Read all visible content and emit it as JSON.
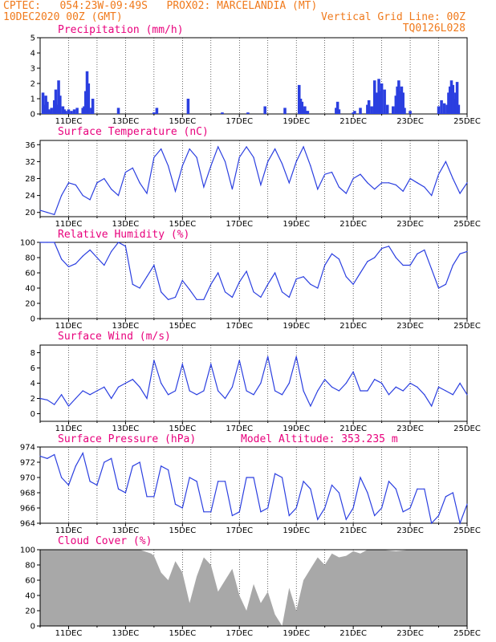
{
  "header": {
    "line1_left": "CPTEC:   054:23W-09:49S   PROX02: MARCELANDIA (MT)",
    "line2_left": "10DEC2020 00Z (GMT)",
    "line2_right": "Vertical Grid Line: 00Z",
    "line3_right": "TQ0126L028"
  },
  "x_tick_labels": [
    "11DEC",
    "13DEC",
    "15DEC",
    "17DEC",
    "19DEC",
    "21DEC",
    "23DEC",
    "25DEC"
  ],
  "colors": {
    "line": "#2b3fe0",
    "bar": "#2b3fe0",
    "cloud": "#a8a8a8",
    "title": "#e8007c",
    "header": "#f07a1c"
  },
  "chart_data": [
    {
      "type": "bar",
      "title": "Precipitation (mm/h)",
      "ylim": [
        0,
        5
      ],
      "yticks": [
        0,
        1,
        2,
        3,
        4,
        5
      ],
      "x_range_days": [
        10,
        25
      ],
      "x": [
        10.1,
        10.15,
        10.2,
        10.25,
        10.3,
        10.35,
        10.4,
        10.5,
        10.55,
        10.6,
        10.65,
        10.7,
        10.8,
        10.85,
        10.9,
        11.0,
        11.1,
        11.2,
        11.3,
        11.5,
        11.55,
        11.6,
        11.65,
        11.7,
        11.8,
        11.85,
        12.75,
        14.0,
        14.1,
        15.2,
        16.4,
        17.3,
        17.9,
        18.6,
        19.1,
        19.15,
        19.2,
        19.25,
        19.3,
        19.35,
        19.4,
        20.4,
        20.45,
        20.5,
        21.0,
        21.05,
        21.25,
        21.5,
        21.55,
        21.65,
        21.75,
        21.8,
        21.85,
        21.9,
        21.95,
        22.0,
        22.1,
        22.2,
        22.4,
        22.5,
        22.55,
        22.6,
        22.65,
        22.7,
        22.75,
        22.8,
        23.0,
        24.0,
        24.1,
        24.2,
        24.3,
        24.35,
        24.4,
        24.45,
        24.5,
        24.55,
        24.6,
        24.65,
        24.7
      ],
      "values": [
        1.4,
        0.6,
        1.2,
        0.8,
        0.3,
        0.2,
        0.4,
        0.9,
        1.6,
        0.6,
        2.2,
        1.2,
        0.5,
        0.3,
        0.2,
        0.3,
        0.2,
        0.3,
        0.4,
        0.4,
        0.5,
        1.5,
        2.8,
        2.0,
        0.4,
        1.0,
        0.4,
        0.1,
        0.4,
        1.0,
        0.1,
        0.1,
        0.5,
        0.4,
        1.9,
        1.0,
        0.8,
        0.3,
        0.5,
        0.2,
        0.2,
        0.4,
        0.8,
        0.3,
        0.1,
        0.2,
        0.4,
        0.6,
        0.9,
        0.5,
        2.2,
        1.2,
        1.4,
        2.3,
        1.5,
        2.0,
        1.6,
        0.6,
        0.5,
        1.2,
        1.8,
        2.2,
        1.5,
        1.8,
        1.4,
        0.4,
        0.2,
        0.5,
        0.9,
        0.7,
        0.6,
        1.4,
        1.8,
        2.2,
        1.9,
        1.0,
        1.4,
        2.1,
        0.6
      ]
    },
    {
      "type": "line",
      "title": "Surface Temperature (nC)",
      "ylim": [
        19,
        37
      ],
      "yticks": [
        20,
        24,
        28,
        32,
        36
      ],
      "x": [
        10.0,
        10.25,
        10.5,
        10.75,
        11.0,
        11.25,
        11.5,
        11.75,
        12.0,
        12.25,
        12.5,
        12.75,
        13.0,
        13.25,
        13.5,
        13.75,
        14.0,
        14.25,
        14.5,
        14.75,
        15.0,
        15.25,
        15.5,
        15.75,
        16.0,
        16.25,
        16.5,
        16.75,
        17.0,
        17.25,
        17.5,
        17.75,
        18.0,
        18.25,
        18.5,
        18.75,
        19.0,
        19.25,
        19.5,
        19.75,
        20.0,
        20.25,
        20.5,
        20.75,
        21.0,
        21.25,
        21.5,
        21.75,
        22.0,
        22.25,
        22.5,
        22.75,
        23.0,
        23.25,
        23.5,
        23.75,
        24.0,
        24.25,
        24.5,
        24.75,
        25.0
      ],
      "values": [
        20.5,
        20.0,
        19.5,
        24.0,
        27.0,
        26.5,
        24.0,
        23.0,
        27.0,
        28.0,
        25.5,
        24.0,
        29.5,
        30.5,
        27.0,
        24.5,
        33.0,
        35.0,
        31.0,
        25.0,
        31.0,
        35.0,
        33.0,
        26.0,
        31.0,
        35.5,
        32.0,
        25.5,
        33.0,
        35.5,
        33.0,
        26.5,
        32.0,
        35.0,
        31.5,
        27.0,
        32.0,
        35.5,
        31.0,
        25.5,
        29.0,
        29.5,
        26.0,
        24.5,
        28.0,
        29.0,
        27.0,
        25.5,
        27.0,
        27.0,
        26.5,
        25.0,
        28.0,
        27.0,
        26.0,
        24.0,
        29.0,
        32.0,
        28.0,
        24.5,
        27.0
      ]
    },
    {
      "type": "line",
      "title": "Relative Humidity (%)",
      "ylim": [
        0,
        100
      ],
      "yticks": [
        0,
        20,
        40,
        60,
        80,
        100
      ],
      "x": [
        10.0,
        10.25,
        10.5,
        10.75,
        11.0,
        11.25,
        11.5,
        11.75,
        12.0,
        12.25,
        12.5,
        12.75,
        13.0,
        13.25,
        13.5,
        13.75,
        14.0,
        14.25,
        14.5,
        14.75,
        15.0,
        15.25,
        15.5,
        15.75,
        16.0,
        16.25,
        16.5,
        16.75,
        17.0,
        17.25,
        17.5,
        17.75,
        18.0,
        18.25,
        18.5,
        18.75,
        19.0,
        19.25,
        19.5,
        19.75,
        20.0,
        20.25,
        20.5,
        20.75,
        21.0,
        21.25,
        21.5,
        21.75,
        22.0,
        22.25,
        22.5,
        22.75,
        23.0,
        23.25,
        23.5,
        23.75,
        24.0,
        24.25,
        24.5,
        24.75,
        25.0
      ],
      "values": [
        100,
        100,
        100,
        78,
        68,
        72,
        82,
        90,
        80,
        70,
        88,
        100,
        95,
        45,
        40,
        55,
        70,
        35,
        25,
        28,
        50,
        38,
        25,
        25,
        45,
        60,
        35,
        28,
        48,
        62,
        35,
        28,
        45,
        60,
        35,
        28,
        52,
        55,
        45,
        40,
        70,
        85,
        78,
        55,
        45,
        60,
        75,
        80,
        92,
        95,
        80,
        70,
        70,
        85,
        90,
        65,
        40,
        45,
        70,
        85,
        88
      ]
    },
    {
      "type": "line",
      "title": "Surface Wind (m/s)",
      "ylim": [
        -1,
        9
      ],
      "yticks": [
        0,
        2,
        4,
        6,
        8
      ],
      "x": [
        10.0,
        10.25,
        10.5,
        10.75,
        11.0,
        11.25,
        11.5,
        11.75,
        12.0,
        12.25,
        12.5,
        12.75,
        13.0,
        13.25,
        13.5,
        13.75,
        14.0,
        14.25,
        14.5,
        14.75,
        15.0,
        15.25,
        15.5,
        15.75,
        16.0,
        16.25,
        16.5,
        16.75,
        17.0,
        17.25,
        17.5,
        17.75,
        18.0,
        18.25,
        18.5,
        18.75,
        19.0,
        19.25,
        19.5,
        19.75,
        20.0,
        20.25,
        20.5,
        20.75,
        21.0,
        21.25,
        21.5,
        21.75,
        22.0,
        22.25,
        22.5,
        22.75,
        23.0,
        23.25,
        23.5,
        23.75,
        24.0,
        24.25,
        24.5,
        24.75,
        25.0
      ],
      "values": [
        2.0,
        1.8,
        1.2,
        2.5,
        1.0,
        2.0,
        3.0,
        2.5,
        3.0,
        3.5,
        2.0,
        3.5,
        4.0,
        4.5,
        3.5,
        2.0,
        7.0,
        4.0,
        2.5,
        3.0,
        6.5,
        3.0,
        2.5,
        3.0,
        6.5,
        3.0,
        2.0,
        3.5,
        7.0,
        3.0,
        2.5,
        4.0,
        7.5,
        3.0,
        2.5,
        4.0,
        7.5,
        3.0,
        1.0,
        3.0,
        4.5,
        3.5,
        3.0,
        4.0,
        5.5,
        3.0,
        3.0,
        4.5,
        4.0,
        2.5,
        3.5,
        3.0,
        4.0,
        3.5,
        2.5,
        1.0,
        3.5,
        3.0,
        2.5,
        4.0,
        2.5
      ]
    },
    {
      "type": "line",
      "title": "Surface Pressure (hPa)",
      "annotation": "Model Altitude: 353.235 m",
      "ylim": [
        964,
        974
      ],
      "yticks": [
        964,
        966,
        968,
        970,
        972,
        974
      ],
      "x": [
        10.0,
        10.25,
        10.5,
        10.75,
        11.0,
        11.25,
        11.5,
        11.75,
        12.0,
        12.25,
        12.5,
        12.75,
        13.0,
        13.25,
        13.5,
        13.75,
        14.0,
        14.25,
        14.5,
        14.75,
        15.0,
        15.25,
        15.5,
        15.75,
        16.0,
        16.25,
        16.5,
        16.75,
        17.0,
        17.25,
        17.5,
        17.75,
        18.0,
        18.25,
        18.5,
        18.75,
        19.0,
        19.25,
        19.5,
        19.75,
        20.0,
        20.25,
        20.5,
        20.75,
        21.0,
        21.25,
        21.5,
        21.75,
        22.0,
        22.25,
        22.5,
        22.75,
        23.0,
        23.25,
        23.5,
        23.75,
        24.0,
        24.25,
        24.5,
        24.75,
        25.0
      ],
      "values": [
        972.8,
        972.5,
        973.0,
        970.0,
        969.0,
        971.5,
        973.2,
        969.5,
        969.0,
        972.0,
        972.5,
        968.5,
        968.0,
        971.5,
        972.0,
        967.5,
        967.5,
        971.5,
        971.0,
        966.5,
        966.0,
        970.0,
        969.5,
        965.5,
        965.5,
        969.5,
        969.5,
        965.0,
        965.5,
        970.0,
        970.0,
        965.5,
        966.0,
        970.5,
        970.0,
        965.0,
        966.0,
        969.5,
        968.5,
        964.5,
        966.0,
        969.0,
        968.0,
        964.5,
        966.0,
        970.0,
        968.0,
        965.0,
        966.0,
        969.5,
        968.5,
        965.5,
        966.0,
        968.5,
        968.5,
        964.0,
        965.0,
        967.5,
        968.0,
        964.0,
        966.5
      ]
    },
    {
      "type": "area",
      "title": "Cloud Cover (%)",
      "ylim": [
        0,
        100
      ],
      "yticks": [
        0,
        20,
        40,
        60,
        80,
        100
      ],
      "x": [
        10.0,
        10.5,
        11.0,
        11.5,
        12.0,
        12.5,
        13.0,
        13.5,
        13.9,
        14.0,
        14.25,
        14.5,
        14.75,
        15.0,
        15.25,
        15.5,
        15.75,
        16.0,
        16.25,
        16.5,
        16.75,
        17.0,
        17.25,
        17.5,
        17.75,
        18.0,
        18.25,
        18.5,
        18.75,
        19.0,
        19.25,
        19.5,
        19.75,
        20.0,
        20.25,
        20.5,
        20.75,
        21.0,
        21.25,
        21.5,
        22.0,
        22.5,
        23.0,
        23.5,
        24.0,
        24.5,
        25.0
      ],
      "values": [
        100,
        100,
        100,
        100,
        100,
        100,
        100,
        100,
        95,
        92,
        70,
        60,
        85,
        70,
        30,
        65,
        90,
        80,
        45,
        60,
        75,
        40,
        20,
        55,
        30,
        45,
        15,
        0,
        50,
        20,
        60,
        75,
        90,
        80,
        95,
        90,
        92,
        98,
        95,
        100,
        100,
        98,
        100,
        100,
        100,
        100,
        100
      ]
    }
  ]
}
